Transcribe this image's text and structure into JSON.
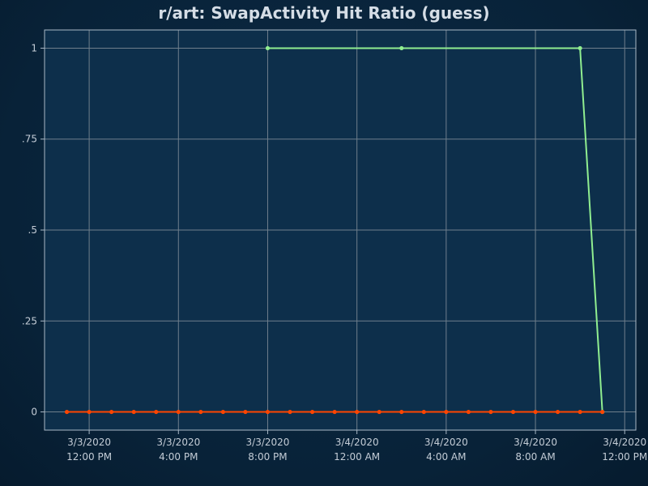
{
  "chart_data": {
    "type": "line",
    "title": "r/art: SwapActivity Hit Ratio (guess)",
    "xlabel": "",
    "ylabel": "",
    "x_unit": "datetime",
    "xlim": [
      "3/3/2020 10:00 AM",
      "3/4/2020 12:30 PM"
    ],
    "ylim": [
      -0.05,
      1.05
    ],
    "y_ticks": [
      0,
      0.25,
      0.5,
      0.75,
      1
    ],
    "y_tick_labels": [
      "0",
      ".25",
      ".5",
      ".75",
      "1"
    ],
    "x_ticks": [
      "3/3/2020 12:00 PM",
      "3/3/2020 4:00 PM",
      "3/3/2020 8:00 PM",
      "3/4/2020 12:00 AM",
      "3/4/2020 4:00 AM",
      "3/4/2020 8:00 AM",
      "3/4/2020 12:00 PM"
    ],
    "x_tick_labels": [
      [
        "3/3/2020",
        "12:00 PM"
      ],
      [
        "3/3/2020",
        "4:00 PM"
      ],
      [
        "3/3/2020",
        "8:00 PM"
      ],
      [
        "3/4/2020",
        "12:00 AM"
      ],
      [
        "3/4/2020",
        "4:00 AM"
      ],
      [
        "3/4/2020",
        "8:00 AM"
      ],
      [
        "3/4/2020",
        "12:00 PM"
      ]
    ],
    "grid": true,
    "legend": "none",
    "series": [
      {
        "color": "#90ee90",
        "points": [
          [
            "3/3/2020 8:00 PM",
            1
          ],
          [
            "3/4/2020 2:00 AM",
            1
          ],
          [
            "3/4/2020 10:00 AM",
            1
          ],
          [
            "3/4/2020 11:00 AM",
            0
          ]
        ]
      },
      {
        "color": "#ff4500",
        "points": [
          [
            "3/3/2020 11:00 AM",
            0
          ],
          [
            "3/3/2020 12:00 PM",
            0
          ],
          [
            "3/3/2020 1:00 PM",
            0
          ],
          [
            "3/3/2020 2:00 PM",
            0
          ],
          [
            "3/3/2020 3:00 PM",
            0
          ],
          [
            "3/3/2020 4:00 PM",
            0
          ],
          [
            "3/3/2020 5:00 PM",
            0
          ],
          [
            "3/3/2020 6:00 PM",
            0
          ],
          [
            "3/3/2020 7:00 PM",
            0
          ],
          [
            "3/3/2020 8:00 PM",
            0
          ],
          [
            "3/3/2020 9:00 PM",
            0
          ],
          [
            "3/3/2020 10:00 PM",
            0
          ],
          [
            "3/3/2020 11:00 PM",
            0
          ],
          [
            "3/4/2020 12:00 AM",
            0
          ],
          [
            "3/4/2020 1:00 AM",
            0
          ],
          [
            "3/4/2020 2:00 AM",
            0
          ],
          [
            "3/4/2020 3:00 AM",
            0
          ],
          [
            "3/4/2020 4:00 AM",
            0
          ],
          [
            "3/4/2020 5:00 AM",
            0
          ],
          [
            "3/4/2020 6:00 AM",
            0
          ],
          [
            "3/4/2020 7:00 AM",
            0
          ],
          [
            "3/4/2020 8:00 AM",
            0
          ],
          [
            "3/4/2020 9:00 AM",
            0
          ],
          [
            "3/4/2020 10:00 AM",
            0
          ],
          [
            "3/4/2020 11:00 AM",
            0
          ]
        ]
      }
    ]
  },
  "colors": {
    "plot_background": "#0d2f4b",
    "grid": "#6f7f8c",
    "frame": "#a9b8c6",
    "tick_text": "#c3ccd6",
    "title": "#d5dde6"
  }
}
